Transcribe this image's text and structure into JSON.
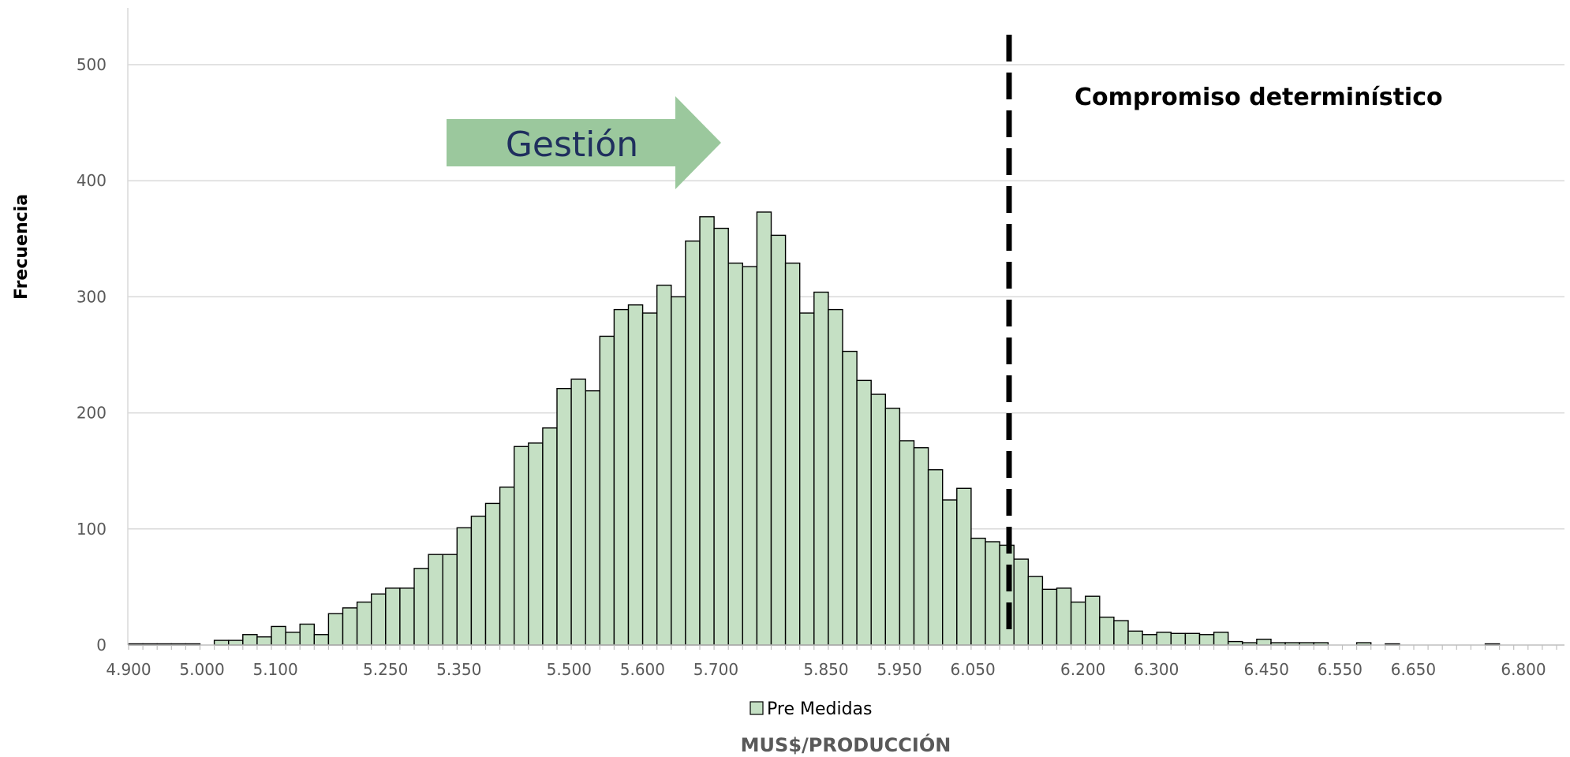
{
  "chart_data": {
    "type": "bar",
    "subtype": "histogram",
    "title": "",
    "xlabel": "MUS$/PRODUCCIÓN",
    "ylabel": "Frecuencia",
    "ylim": [
      0,
      550
    ],
    "xlim": [
      4.9,
      6.85
    ],
    "yticks": [
      0,
      100,
      200,
      300,
      400,
      500
    ],
    "ytick_labels": [
      "0",
      "100",
      "200",
      "300",
      "400",
      "500"
    ],
    "xticks": [
      4.9,
      5.0,
      5.1,
      5.25,
      5.35,
      5.5,
      5.6,
      5.7,
      5.85,
      5.95,
      6.05,
      6.2,
      6.3,
      6.45,
      6.55,
      6.65,
      6.8
    ],
    "xtick_labels": [
      "4.900",
      "5.000",
      "5.100",
      "5.250",
      "5.350",
      "5.500",
      "5.600",
      "5.700",
      "5.850",
      "5.950",
      "6.050",
      "6.200",
      "6.300",
      "6.450",
      "6.550",
      "6.650",
      "6.800"
    ],
    "grid": true,
    "legend_position": "bottom",
    "bin_width": 0.0167,
    "bin_start": 4.9,
    "series": [
      {
        "name": "Pre Medidas",
        "color": "#c5e0c4",
        "edge_color": "#000000",
        "values": [
          1,
          1,
          1,
          1,
          1,
          0,
          4,
          4,
          9,
          7,
          16,
          11,
          18,
          9,
          27,
          32,
          37,
          44,
          49,
          49,
          66,
          78,
          78,
          101,
          111,
          122,
          136,
          171,
          174,
          187,
          221,
          229,
          219,
          266,
          289,
          293,
          286,
          310,
          300,
          348,
          369,
          359,
          329,
          326,
          373,
          353,
          329,
          286,
          304,
          289,
          253,
          228,
          216,
          204,
          176,
          170,
          151,
          125,
          135,
          92,
          89,
          86,
          74,
          59,
          48,
          49,
          37,
          42,
          24,
          21,
          12,
          9,
          11,
          10,
          10,
          9,
          11,
          3,
          2,
          5,
          2,
          2,
          2,
          2,
          0,
          0,
          2,
          0,
          1,
          0,
          0,
          0,
          0,
          0,
          0,
          1,
          0,
          0,
          0,
          0
        ]
      }
    ],
    "annotations": [
      {
        "type": "vline",
        "x": 6.06,
        "style": "dashed",
        "color": "#000000",
        "label": "Compromiso determinístico"
      },
      {
        "type": "arrow",
        "direction": "right",
        "label": "Gestión",
        "color": "#9bc89d",
        "x_start": 5.27,
        "x_end": 5.59,
        "y": 432
      }
    ]
  }
}
